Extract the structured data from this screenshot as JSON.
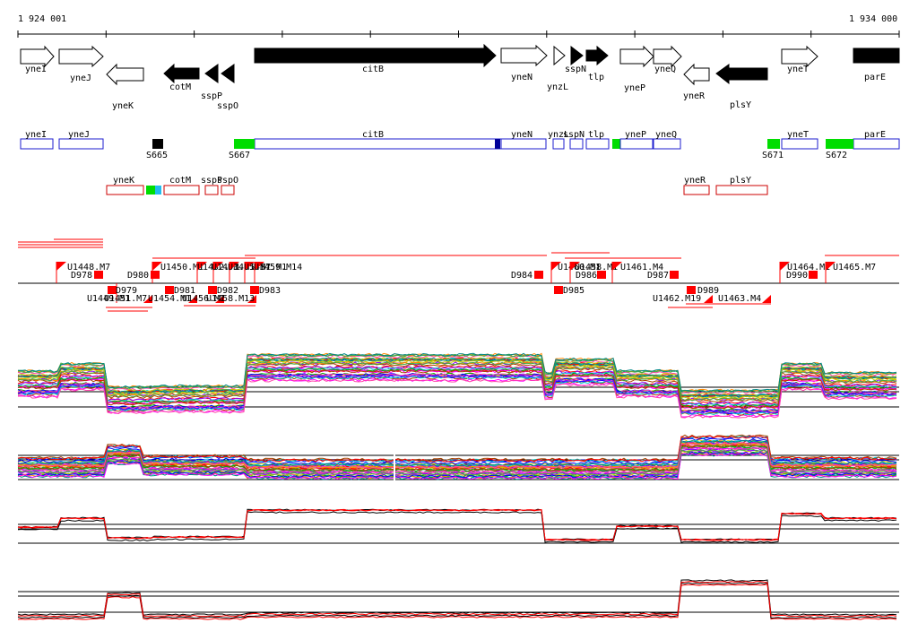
{
  "ruler": {
    "start_label": "1 924 001",
    "end_label": "1 934 000"
  },
  "colors": {
    "feature_outline": "#1c1ccf",
    "antisense_outline": "#cc0000",
    "sig": "#00dd00",
    "sig_alt": "#22bbee",
    "dark": "#000000",
    "promoter": "#ff0000",
    "deep_blue": "#000099"
  },
  "genes_forward": [
    {
      "label": "yneI"
    },
    {
      "label": "yneJ"
    },
    {
      "label": "citB"
    },
    {
      "label": "yneN"
    },
    {
      "label": "ynzL"
    },
    {
      "label": "sspN"
    },
    {
      "label": "tlp"
    },
    {
      "label": "yneP"
    },
    {
      "label": "yneQ"
    },
    {
      "label": "yneT"
    },
    {
      "label": "parE"
    }
  ],
  "genes_reverse": [
    {
      "label": "yneK"
    },
    {
      "label": "cotM"
    },
    {
      "label": "sspP"
    },
    {
      "label": "sspO"
    },
    {
      "label": "yneR"
    },
    {
      "label": "plsY"
    }
  ],
  "segments_forward": [
    {
      "label": "yneI"
    },
    {
      "label": "yneJ"
    },
    {
      "label": "citB"
    },
    {
      "label": "yneN"
    },
    {
      "label": "ynzL"
    },
    {
      "label": "sspN"
    },
    {
      "label": "tlp"
    },
    {
      "label": "yneP"
    },
    {
      "label": "yneQ"
    },
    {
      "label": "yneT"
    },
    {
      "label": "parE"
    }
  ],
  "segments_reverse": [
    {
      "label": "yneK"
    },
    {
      "label": "cotM"
    },
    {
      "label": "sspP"
    },
    {
      "label": "sspO"
    },
    {
      "label": "yneR"
    },
    {
      "label": "plsY"
    }
  ],
  "signatures": [
    {
      "label": "S665"
    },
    {
      "label": "S667"
    },
    {
      "label": "S671"
    },
    {
      "label": "S672"
    }
  ],
  "up_markers": [
    {
      "label": "U1448.M7"
    },
    {
      "label": "U1450.M1"
    },
    {
      "label": "U1452.M1"
    },
    {
      "label": "U1453.M1"
    },
    {
      "label": "U1455.M1"
    },
    {
      "label": "U1457.M1"
    },
    {
      "label": "U1459.M14"
    },
    {
      "label": "U1460.M1"
    },
    {
      "label": "U1458.M1"
    },
    {
      "label": "U1461.M4"
    },
    {
      "label": "U1464.M1"
    },
    {
      "label": "U1465.M7"
    }
  ],
  "down_markers": [
    {
      "label": "D978"
    },
    {
      "label": "D980"
    },
    {
      "label": "D984"
    },
    {
      "label": "D986"
    },
    {
      "label": "D987"
    },
    {
      "label": "D990"
    }
  ],
  "below_markers": [
    {
      "label": "U1449.M1"
    },
    {
      "label": "U1451.M7"
    },
    {
      "label": "D979"
    },
    {
      "label": "U1454.M1"
    },
    {
      "label": "D981"
    },
    {
      "label": "U1456.M1"
    },
    {
      "label": "D982"
    },
    {
      "label": "U1458.M13"
    },
    {
      "label": "D983"
    },
    {
      "label": "D985"
    },
    {
      "label": "U1462.M19"
    },
    {
      "label": "D989"
    },
    {
      "label": "U1463.M4"
    }
  ]
}
